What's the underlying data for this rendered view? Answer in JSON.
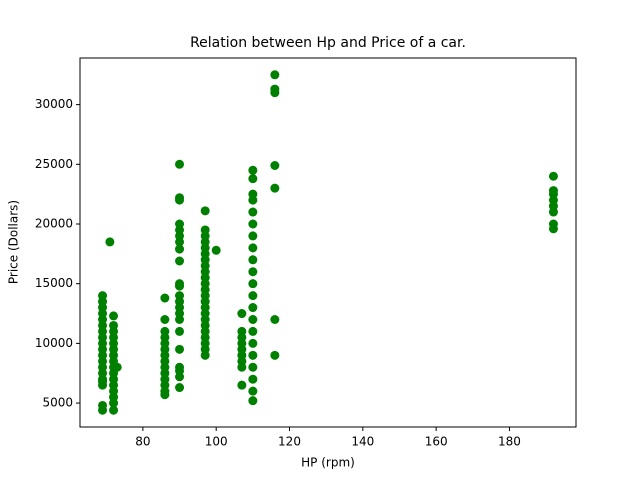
{
  "chart_data": {
    "type": "scatter",
    "title": "Relation between Hp and Price of a car.",
    "x_label": "HP (rpm)",
    "y_label": "Price (Dollars)",
    "color": "#008000",
    "x": [
      69,
      69,
      69,
      69,
      69,
      69,
      69,
      69,
      69,
      69,
      69,
      69,
      69,
      69,
      69,
      69,
      69,
      69,
      69,
      71,
      72,
      72,
      72,
      72,
      72,
      72,
      72,
      72,
      72,
      72,
      72,
      72,
      72,
      72,
      72,
      72,
      73,
      86,
      86,
      86,
      86,
      86,
      86,
      86,
      86,
      86,
      86,
      86,
      86,
      86,
      86,
      90,
      90,
      90,
      90,
      90,
      90,
      90,
      90,
      90,
      90,
      90,
      90,
      90,
      90,
      90,
      90,
      90,
      90,
      90,
      90,
      90,
      90,
      97,
      97,
      97,
      97,
      97,
      97,
      97,
      97,
      97,
      97,
      97,
      97,
      97,
      97,
      97,
      97,
      97,
      97,
      97,
      97,
      97,
      97,
      97,
      100,
      107,
      107,
      107,
      107,
      107,
      107,
      107,
      107,
      107,
      110,
      110,
      110,
      110,
      110,
      110,
      110,
      110,
      110,
      110,
      110,
      110,
      110,
      110,
      110,
      110,
      110,
      110,
      110,
      110,
      110,
      116,
      116,
      116,
      116,
      116,
      116,
      116,
      192,
      192,
      192,
      192,
      192,
      192,
      192,
      192
    ],
    "values": [
      4400,
      4800,
      6500,
      6800,
      7000,
      7500,
      8000,
      8500,
      9000,
      9500,
      10000,
      10500,
      11000,
      11500,
      12000,
      12500,
      13000,
      13500,
      14000,
      18500,
      4400,
      5000,
      5500,
      6000,
      6500,
      7000,
      7500,
      8000,
      8500,
      9000,
      9500,
      10000,
      10500,
      11000,
      11500,
      12300,
      8000,
      5700,
      6000,
      6500,
      7000,
      7500,
      8000,
      8500,
      9000,
      9500,
      10000,
      10500,
      11000,
      12000,
      13800,
      6300,
      7200,
      7700,
      8000,
      9500,
      11000,
      12000,
      12500,
      13000,
      13500,
      14000,
      14800,
      15000,
      16900,
      17900,
      18500,
      19000,
      19500,
      20000,
      22000,
      22200,
      25000,
      9000,
      9500,
      10000,
      10500,
      11000,
      11500,
      12000,
      12500,
      13000,
      13500,
      14000,
      14500,
      15000,
      15500,
      16000,
      16500,
      17000,
      17500,
      18000,
      18500,
      19000,
      19500,
      21100,
      17800,
      6500,
      8000,
      8500,
      9000,
      9500,
      10000,
      10500,
      11000,
      12500,
      5200,
      6000,
      7000,
      8000,
      9000,
      10000,
      11000,
      12000,
      13000,
      14000,
      15000,
      16000,
      17000,
      18000,
      19000,
      20000,
      21000,
      22000,
      22500,
      23800,
      24500,
      9000,
      12000,
      23000,
      24900,
      31000,
      31300,
      32500,
      19600,
      20000,
      21000,
      21500,
      22000,
      22500,
      22800,
      24000
    ],
    "xlim": [
      62.85,
      198.15
    ],
    "ylim": [
      2995,
      33905
    ],
    "xticks": [
      80,
      100,
      120,
      140,
      160,
      180
    ],
    "yticks": [
      5000,
      10000,
      15000,
      20000,
      25000,
      30000
    ]
  }
}
